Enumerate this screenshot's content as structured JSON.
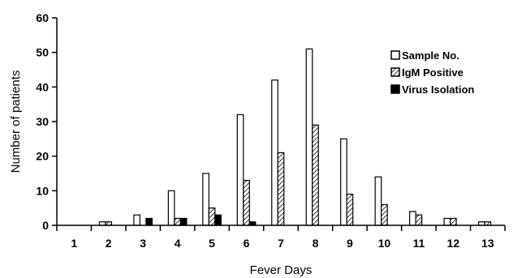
{
  "chart_data": {
    "type": "bar",
    "title": "",
    "xlabel": "Fever Days",
    "ylabel": "Number of patients",
    "categories": [
      "1",
      "2",
      "3",
      "4",
      "5",
      "6",
      "7",
      "8",
      "9",
      "10",
      "11",
      "12",
      "13"
    ],
    "series": [
      {
        "name": "Sample No.",
        "fill": "white",
        "values": [
          0,
          1,
          3,
          10,
          15,
          32,
          42,
          51,
          25,
          14,
          4,
          2,
          1
        ]
      },
      {
        "name": "IgM Positive",
        "fill": "hatched",
        "values": [
          0,
          1,
          0,
          2,
          5,
          13,
          21,
          29,
          9,
          6,
          3,
          2,
          1
        ]
      },
      {
        "name": "Virus Isolation",
        "fill": "black",
        "values": [
          0,
          0,
          2,
          2,
          3,
          1,
          0,
          0,
          0,
          0,
          0,
          0,
          0
        ]
      }
    ],
    "ylim": [
      0,
      60
    ],
    "yticks": [
      0,
      10,
      20,
      30,
      40,
      50,
      60
    ],
    "grid": false,
    "legend_position": "top-right"
  }
}
